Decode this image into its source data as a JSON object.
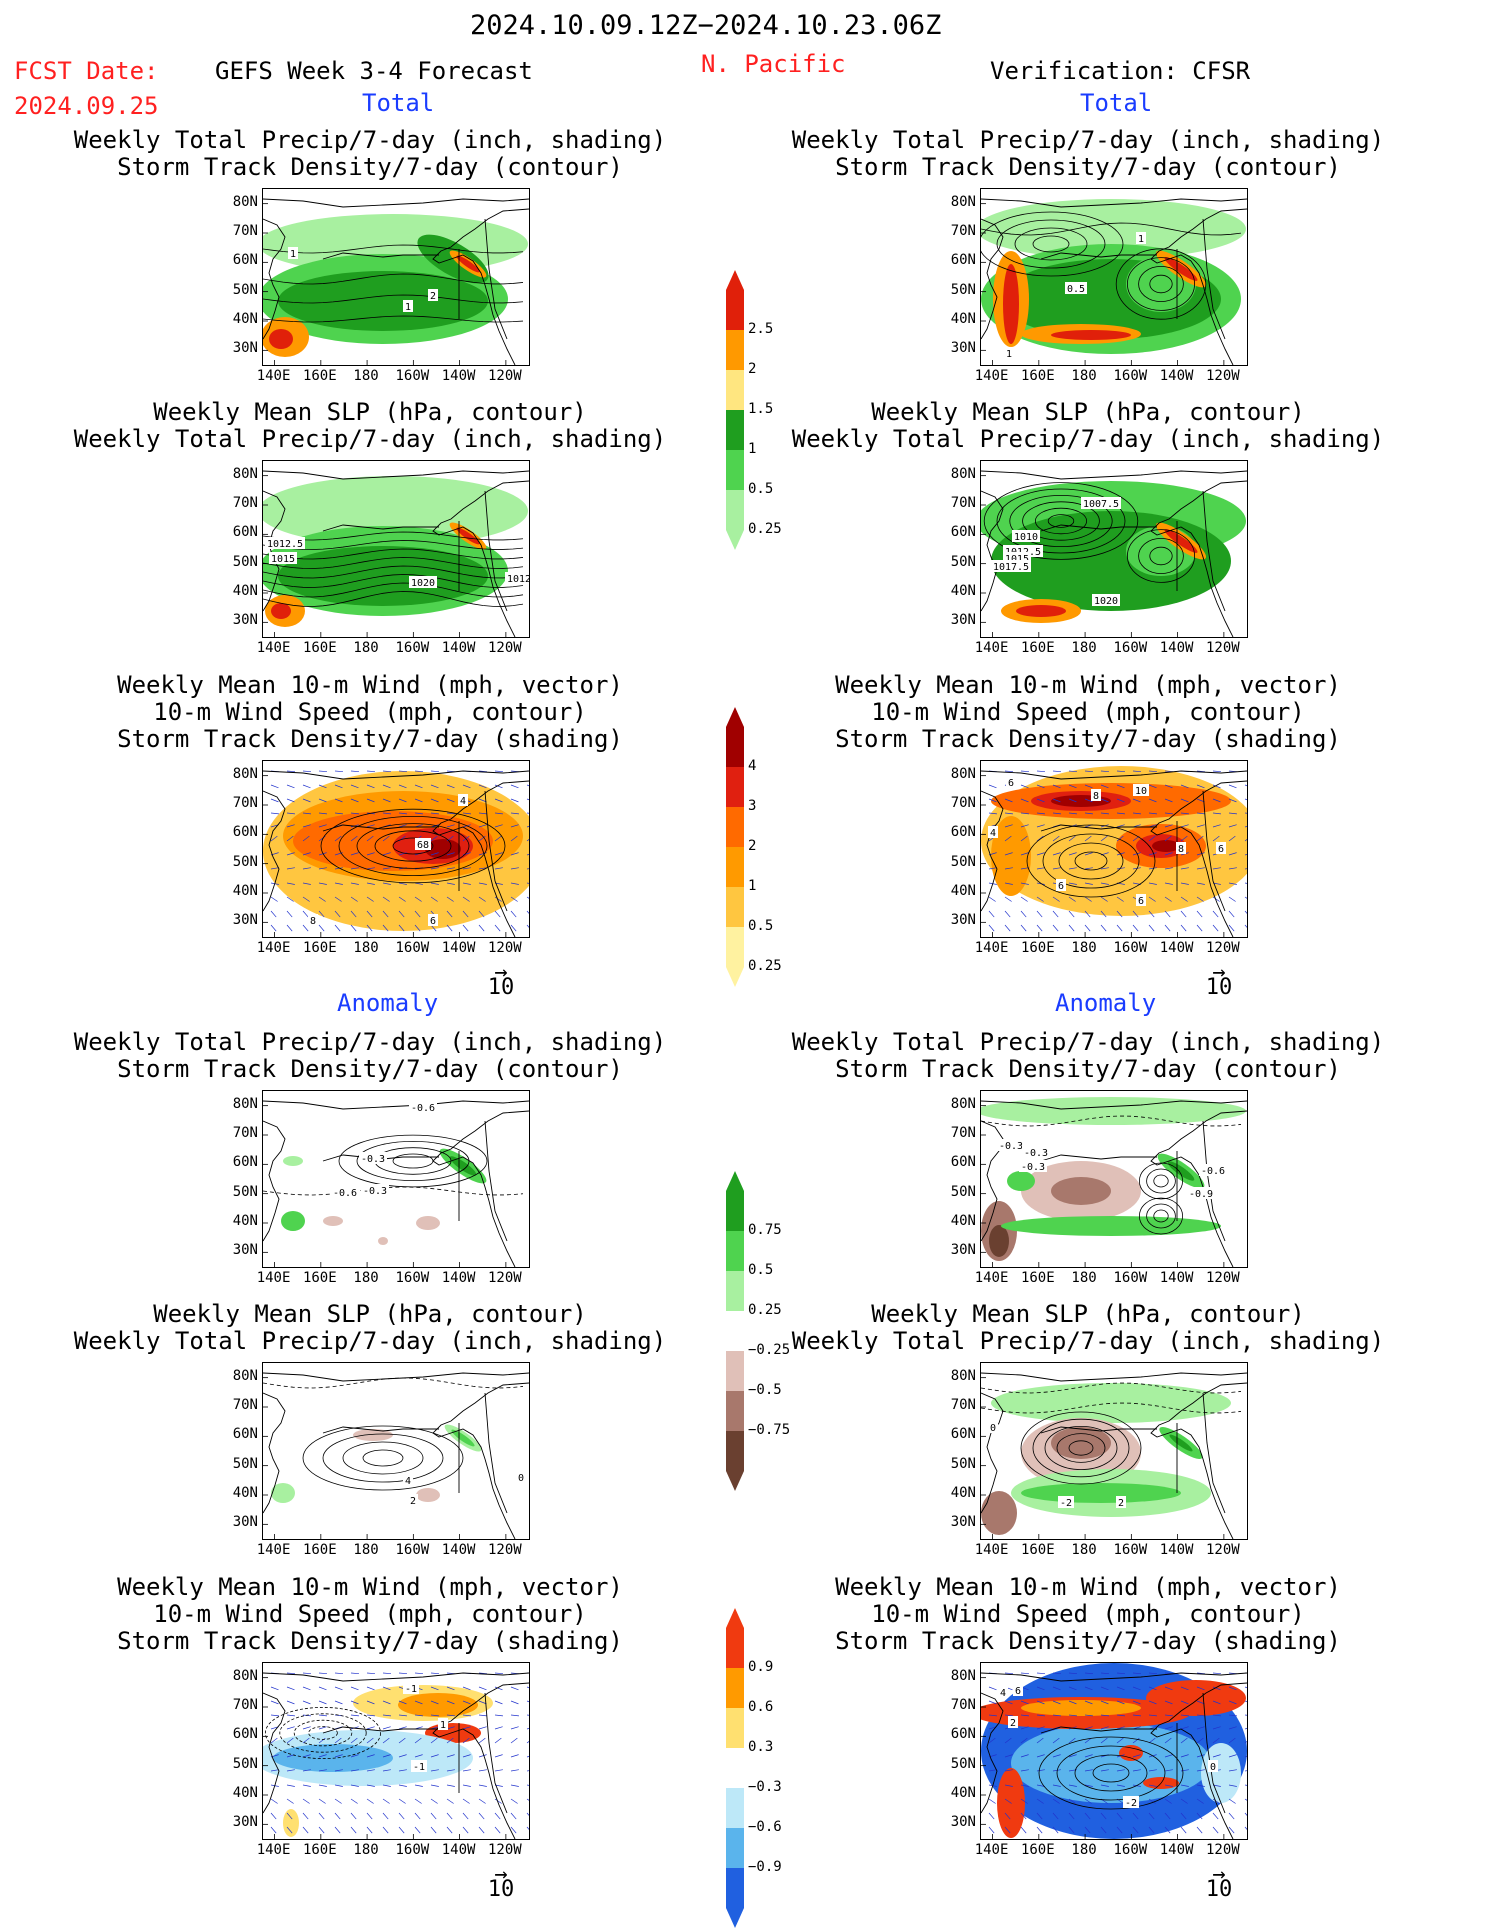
{
  "header": {
    "period": "2024.10.09.12Z−2024.10.23.06Z",
    "fcst_label": "FCST Date:",
    "fcst_date": "2024.09.25",
    "model": "GEFS Week 3-4 Forecast",
    "region": "N. Pacific",
    "verification": "Verification: CFSR"
  },
  "sections": {
    "total_left": "Total",
    "total_right": "Total",
    "anom_left": "Anomaly",
    "anom_right": "Anomaly"
  },
  "titles": {
    "precip_storm": [
      "Weekly Total Precip/7-day (inch, shading)",
      "Storm Track Density/7-day (contour)"
    ],
    "slp_precip": [
      "Weekly Mean SLP (hPa, contour)",
      "Weekly Total Precip/7-day (inch, shading)"
    ],
    "wind": [
      "Weekly Mean 10-m Wind (mph, vector)",
      "10-m Wind Speed (mph, contour)",
      "Storm Track Density/7-day (shading)"
    ]
  },
  "axes": {
    "lat": [
      "80N",
      "70N",
      "60N",
      "50N",
      "40N",
      "30N"
    ],
    "lon": [
      "140E",
      "160E",
      "180",
      "160W",
      "140W",
      "120W"
    ]
  },
  "vector_ref": "10",
  "colorbars": {
    "precip_total": {
      "labels": [
        "2.5",
        "2",
        "1.5",
        "1",
        "0.5",
        "0.25"
      ],
      "colors": [
        "#e0200a",
        "#ff9900",
        "#ffe680",
        "#1f9e1f",
        "#4fd34f",
        "#a8f0a0"
      ]
    },
    "storm_total": {
      "labels": [
        "4",
        "3",
        "2",
        "1",
        "0.5",
        "0.25"
      ],
      "colors": [
        "#a00000",
        "#e02010",
        "#ff6a00",
        "#ff9a00",
        "#ffc640",
        "#fff2a0"
      ]
    },
    "precip_anom": {
      "labels": [
        "0.75",
        "0.5",
        "0.25",
        "−0.25",
        "−0.5",
        "−0.75"
      ],
      "colors": [
        "#1f9e1f",
        "#4fd34f",
        "#a8f0a0",
        "#ffffff",
        "#e0c0b8",
        "#a8786c",
        "#6a4030"
      ]
    },
    "storm_anom": {
      "labels": [
        "0.9",
        "0.6",
        "0.3",
        "−0.3",
        "−0.6",
        "−0.9"
      ],
      "colors": [
        "#f03a10",
        "#ff9a00",
        "#ffe070",
        "#ffffff",
        "#bde8f8",
        "#5ab4ec",
        "#2060e0"
      ]
    }
  },
  "contour_labels": {
    "p1_left": [
      "1",
      "1",
      "2"
    ],
    "p1_right": [
      "1",
      "0.5",
      "1"
    ],
    "p2_left": [
      "1012.5",
      "1015",
      "1020",
      "1012"
    ],
    "p2_right": [
      "1007.5",
      "1010",
      "1012.5",
      "1015",
      "1017.5",
      "1020"
    ],
    "p3_left": [
      "4",
      "68",
      "6",
      "8"
    ],
    "p3_right": [
      "6",
      "10",
      "8",
      "4",
      "6",
      "8",
      "6",
      "6"
    ],
    "a1_left": [
      "-0.6",
      "-0.3",
      "-0.6",
      "-0.3"
    ],
    "a1_right": [
      "-0.3",
      "-0.3",
      "-0.3",
      "-0.6",
      "-0.9"
    ],
    "a2_left": [
      "4",
      "2",
      "0"
    ],
    "a2_right": [
      "0",
      "2",
      "-2"
    ],
    "a3_left": [
      "-1",
      "-1",
      "1"
    ],
    "a3_right": [
      "4",
      "6",
      "2",
      "0",
      "-2"
    ]
  }
}
